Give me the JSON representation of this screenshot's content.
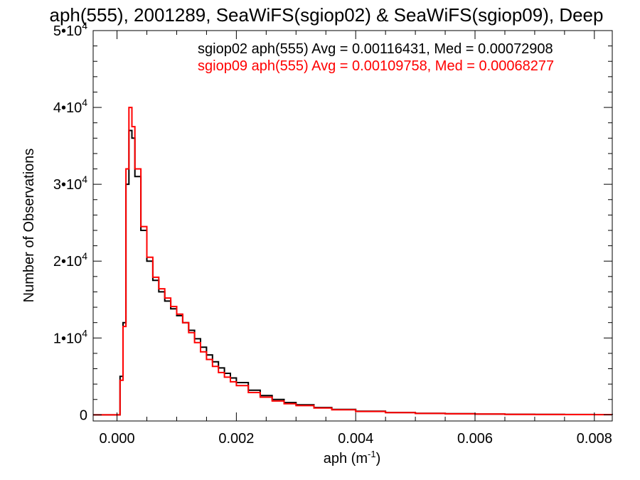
{
  "chart_data": {
    "type": "line",
    "title": "aph(555), 2001289, SeaWiFS(sgiop02) & SeaWiFS(sgiop09), Deep",
    "xlabel": "aph (m",
    "xlabel_exp": "-1",
    "xlabel_end": ")",
    "ylabel": "Number of Observations",
    "xlim": [
      -0.0004,
      0.0083
    ],
    "ylim": [
      -800,
      50000
    ],
    "x_ticks": [
      {
        "value": 0.0,
        "label": "0.000"
      },
      {
        "value": 0.002,
        "label": "0.002"
      },
      {
        "value": 0.004,
        "label": "0.004"
      },
      {
        "value": 0.006,
        "label": "0.006"
      },
      {
        "value": 0.008,
        "label": "0.008"
      }
    ],
    "y_ticks": [
      {
        "value": 0,
        "label": "0",
        "exp": ""
      },
      {
        "value": 10000,
        "label": "1•10",
        "exp": "4"
      },
      {
        "value": 20000,
        "label": "2•10",
        "exp": "4"
      },
      {
        "value": 30000,
        "label": "3•10",
        "exp": "4"
      },
      {
        "value": 40000,
        "label": "4•10",
        "exp": "4"
      },
      {
        "value": 50000,
        "label": "5•10",
        "exp": "4"
      }
    ],
    "x": [
      -0.0004,
      0.0,
      5e-05,
      0.0001,
      0.00015,
      0.0002,
      0.00025,
      0.0003,
      0.0004,
      0.0005,
      0.0006,
      0.0007,
      0.0008,
      0.0009,
      0.001,
      0.0011,
      0.0012,
      0.0013,
      0.0014,
      0.0015,
      0.0016,
      0.0017,
      0.0018,
      0.0019,
      0.002,
      0.0022,
      0.0024,
      0.0026,
      0.0028,
      0.003,
      0.0033,
      0.0036,
      0.004,
      0.0045,
      0.005,
      0.0055,
      0.006,
      0.0065,
      0.007,
      0.0075,
      0.008,
      0.0083
    ],
    "series": [
      {
        "name": "sgiop02",
        "color": "#000000",
        "legend": "sgiop02 aph(555) Avg = 0.00116431, Med = 0.00072908",
        "values": [
          0,
          0,
          5000,
          12000,
          30000,
          37000,
          36000,
          31000,
          24000,
          20000,
          17500,
          16000,
          14800,
          13800,
          12900,
          12000,
          11000,
          9900,
          8800,
          7800,
          6900,
          6100,
          5400,
          4800,
          4200,
          3200,
          2500,
          2000,
          1600,
          1300,
          950,
          700,
          480,
          300,
          200,
          140,
          100,
          70,
          50,
          40,
          30,
          25
        ]
      },
      {
        "name": "sgiop09",
        "color": "#ff0000",
        "legend": "sgiop09 aph(555) Avg = 0.00109758, Med = 0.00068277",
        "values": [
          0,
          0,
          4500,
          11500,
          32000,
          40000,
          37500,
          32000,
          24500,
          20500,
          17900,
          16400,
          15200,
          14100,
          13100,
          12000,
          10700,
          9400,
          8200,
          7200,
          6300,
          5500,
          4900,
          4300,
          3800,
          2900,
          2300,
          1800,
          1450,
          1200,
          880,
          650,
          440,
          280,
          185,
          130,
          95,
          65,
          45,
          35,
          28,
          22
        ]
      }
    ],
    "grid": false,
    "legend_position": "top-right"
  }
}
